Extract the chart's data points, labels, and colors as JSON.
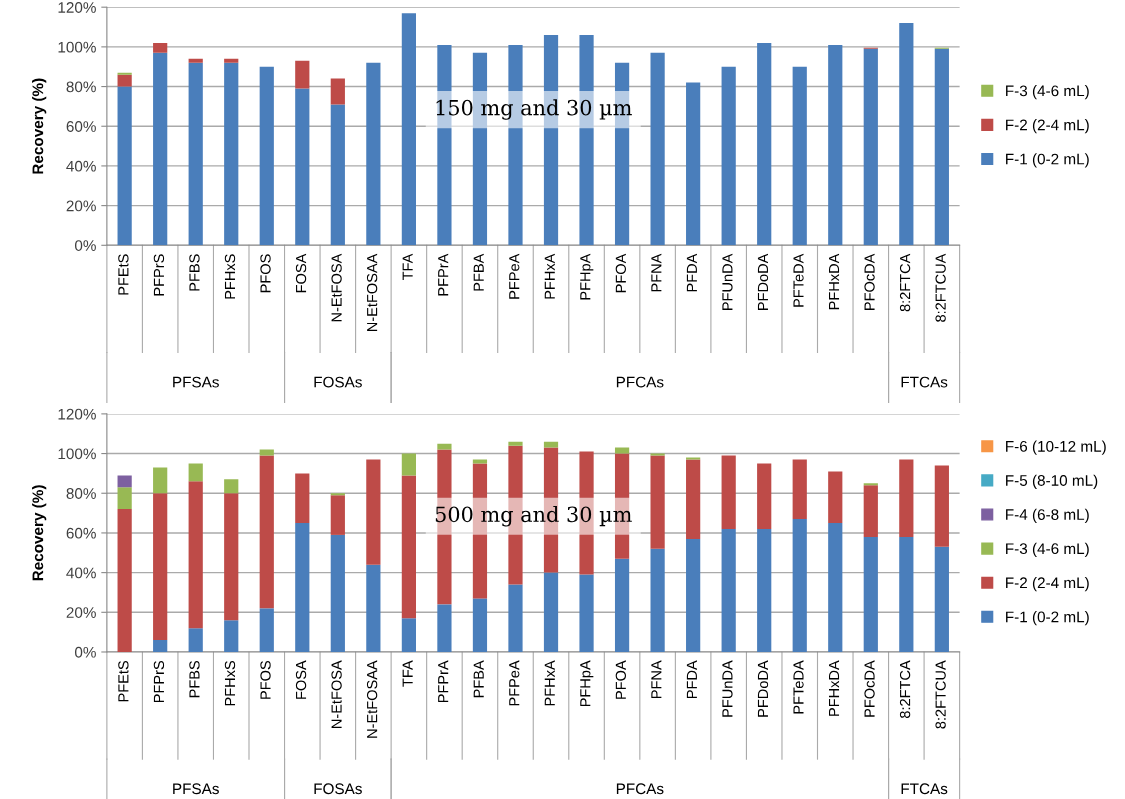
{
  "chart_data": [
    {
      "type": "bar",
      "stacked": true,
      "ylabel": "Recovery (%)",
      "legend": "right",
      "grid": "y",
      "categories": [
        "PFEtS",
        "PFPrS",
        "PFBS",
        "PFHxS",
        "PFOS",
        "FOSA",
        "N-EtFOSA",
        "N-EtFOSAA",
        "TFA",
        "PFPrA",
        "PFBA",
        "PFPeA",
        "PFHxA",
        "PFHpA",
        "PFOA",
        "PFNA",
        "PFDA",
        "PFUnDA",
        "PFDoDA",
        "PFTeDA",
        "PFHxDA",
        "PFOcDA",
        "8:2FTCA",
        "8:2FTCUA"
      ],
      "series": [
        {
          "name": "F-1 (0-2 mL)",
          "color": "#4a7ebb",
          "values": [
            80,
            97,
            92,
            92,
            90,
            79,
            71,
            92,
            117,
            101,
            97,
            101,
            106,
            106,
            92,
            97,
            82,
            90,
            102,
            90,
            101,
            99,
            112,
            99
          ]
        },
        {
          "name": "F-2 (2-4 mL)",
          "color": "#be4b48",
          "values": [
            6,
            5,
            2,
            2,
            0,
            14,
            13,
            0,
            0,
            0,
            0,
            0,
            0,
            0,
            0,
            0,
            0,
            0,
            0,
            0,
            0,
            0.5,
            0,
            0
          ]
        },
        {
          "name": "F-3 (4-6 mL)",
          "color": "#98b954",
          "values": [
            1,
            0,
            0,
            0,
            0,
            0,
            0,
            0,
            0,
            0,
            0,
            0,
            0,
            0,
            0,
            0,
            0,
            0,
            0,
            0,
            0,
            0,
            0,
            0.5
          ]
        }
      ],
      "ylim": [
        0,
        120
      ],
      "yticks": [
        {
          "value": 0,
          "label": "0%"
        },
        {
          "value": 20,
          "label": "20%"
        },
        {
          "value": 40,
          "label": "40%"
        },
        {
          "value": 60,
          "label": "60%"
        },
        {
          "value": 80,
          "label": "80%"
        },
        {
          "value": 100,
          "label": "100%"
        },
        {
          "value": 120,
          "label": "120%"
        }
      ],
      "annotations": [
        "150 mg and 30 µm",
        "PFSAs",
        "FOSAs",
        "PFCAs",
        "FTCAs"
      ]
    },
    {
      "type": "bar",
      "stacked": true,
      "ylabel": "Recovery (%)",
      "legend": "right",
      "grid": "y",
      "categories": [
        "PFEtS",
        "PFPrS",
        "PFBS",
        "PFHxS",
        "PFOS",
        "FOSA",
        "N-EtFOSA",
        "N-EtFOSAA",
        "TFA",
        "PFPrA",
        "PFBA",
        "PFPeA",
        "PFHxA",
        "PFHpA",
        "PFOA",
        "PFNA",
        "PFDA",
        "PFUnDA",
        "PFDoDA",
        "PFTeDA",
        "PFHxDA",
        "PFOcDA",
        "8:2FTCA",
        "8:2FTCUA"
      ],
      "series": [
        {
          "name": "F-1 (0-2 mL)",
          "color": "#4a7ebb",
          "values": [
            0,
            6,
            12,
            16,
            22,
            65,
            59,
            44,
            17,
            24,
            27,
            34,
            40,
            39,
            47,
            52,
            57,
            62,
            62,
            67,
            65,
            58,
            58,
            53
          ]
        },
        {
          "name": "F-2 (2-4 mL)",
          "color": "#be4b48",
          "values": [
            72,
            74,
            74,
            64,
            77,
            25,
            20,
            53,
            72,
            78,
            68,
            70,
            63,
            62,
            53,
            47,
            40,
            37,
            33,
            30,
            26,
            26,
            39,
            41
          ]
        },
        {
          "name": "F-3 (4-6 mL)",
          "color": "#98b954",
          "values": [
            11,
            13,
            9,
            7,
            3,
            0,
            1,
            0,
            11,
            3,
            2,
            2,
            3,
            0,
            3,
            1,
            1,
            0,
            0,
            0,
            0,
            1,
            0,
            0
          ]
        },
        {
          "name": "F-4 (6-8 mL)",
          "color": "#7d60a0",
          "values": [
            6,
            0,
            0,
            0,
            0,
            0,
            0,
            0,
            0,
            0,
            0,
            0,
            0,
            0,
            0,
            0,
            0,
            0,
            0,
            0,
            0,
            0,
            0,
            0
          ]
        },
        {
          "name": "F-5 (8-10 mL)",
          "color": "#46aac5",
          "values": [
            0,
            0,
            0,
            0,
            0,
            0,
            0,
            0,
            0,
            0,
            0,
            0,
            0,
            0,
            0,
            0,
            0,
            0,
            0,
            0,
            0,
            0,
            0,
            0
          ]
        },
        {
          "name": "F-6 (10-12 mL)",
          "color": "#f79646",
          "values": [
            0,
            0,
            0,
            0,
            0,
            0,
            0,
            0,
            0,
            0,
            0,
            0,
            0,
            0,
            0,
            0,
            0,
            0,
            0,
            0,
            0,
            0,
            0,
            0
          ]
        }
      ],
      "ylim": [
        0,
        120
      ],
      "yticks": [
        {
          "value": 0,
          "label": "0%"
        },
        {
          "value": 20,
          "label": "20%"
        },
        {
          "value": 40,
          "label": "40%"
        },
        {
          "value": 60,
          "label": "60%"
        },
        {
          "value": 80,
          "label": "80%"
        },
        {
          "value": 100,
          "label": "100%"
        },
        {
          "value": 120,
          "label": "120%"
        }
      ],
      "annotations": [
        "500 mg and 30 µm",
        "PFSAs",
        "FOSAs",
        "PFCAs",
        "FTCAs"
      ]
    }
  ]
}
